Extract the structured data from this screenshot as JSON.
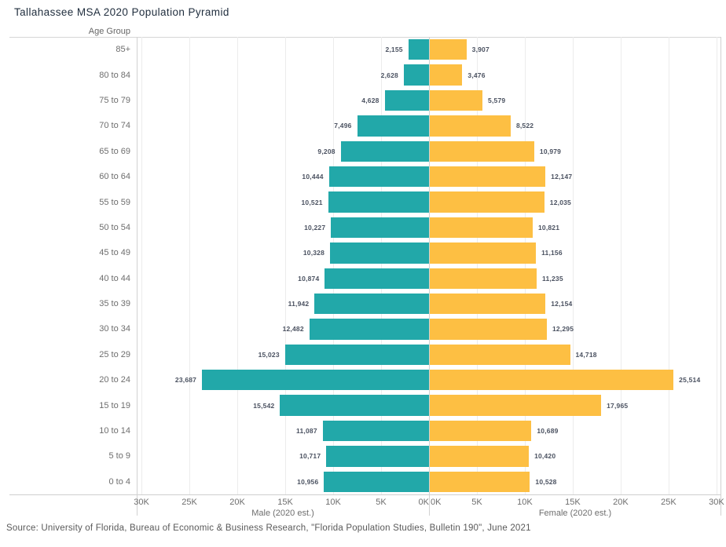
{
  "title": "Tallahassee MSA 2020 Population Pyramid",
  "source": "Source: University of Florida, Bureau of Economic & Business Research, \"Florida Population Studies, Bulletin 190\", June 2021",
  "colors": {
    "male_bar": "#22a8a9",
    "female_bar": "#fdbf43",
    "gridline": "#ececec",
    "axis_line": "#d2d2d2"
  },
  "chart_data": {
    "type": "bar",
    "subtype": "population-pyramid",
    "title": "Tallahassee MSA 2020 Population Pyramid",
    "age_axis_label": "Age Group",
    "categories": [
      "85+",
      "80 to 84",
      "75 to 79",
      "70 to 74",
      "65 to 69",
      "60 to 64",
      "55 to 59",
      "50 to 54",
      "45 to 49",
      "40 to 44",
      "35 to 39",
      "30 to 34",
      "25 to 29",
      "20 to 24",
      "15 to 19",
      "10 to 14",
      "5 to 9",
      "0 to 4"
    ],
    "series": [
      {
        "name": "Male (2020 est.)",
        "color": "#22a8a9",
        "values": [
          2155,
          2628,
          4628,
          7496,
          9208,
          10444,
          10521,
          10227,
          10328,
          10874,
          11942,
          12482,
          15023,
          23687,
          15542,
          11087,
          10717,
          10956
        ]
      },
      {
        "name": "Female (2020 est.)",
        "color": "#fdbf43",
        "values": [
          3907,
          3476,
          5579,
          8522,
          10979,
          12147,
          12035,
          10821,
          11156,
          11235,
          12154,
          12295,
          14718,
          25514,
          17965,
          10689,
          10420,
          10528
        ]
      }
    ],
    "ticks": [
      0,
      5000,
      10000,
      15000,
      20000,
      25000,
      30000
    ],
    "tick_labels": [
      "0K",
      "5K",
      "10K",
      "15K",
      "20K",
      "25K",
      "30K"
    ],
    "axis_max": 30500,
    "grid": true,
    "legend": "none",
    "value_labels": "outside-bar-ends"
  }
}
